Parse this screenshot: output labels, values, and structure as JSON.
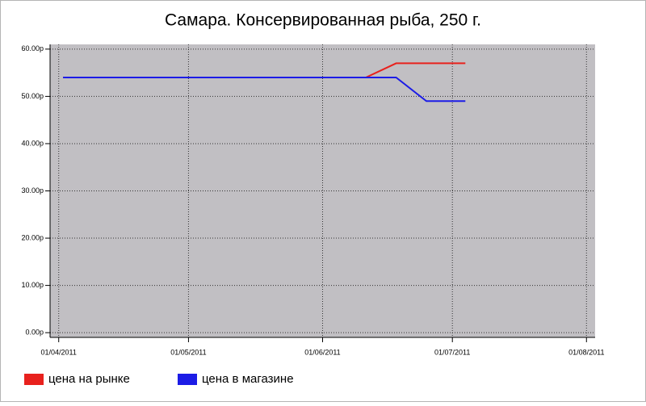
{
  "chart_data": {
    "type": "line",
    "title": "Самара. Консервированная рыба, 250 г.",
    "x": [
      "2011-04-02",
      "2011-06-11",
      "2011-06-18",
      "2011-06-25",
      "2011-07-04"
    ],
    "series": [
      {
        "name": "цена на рынке",
        "color": "#e8211d",
        "values": [
          54,
          54,
          57,
          57,
          57
        ]
      },
      {
        "name": "цена в магазине",
        "color": "#1c1ce6",
        "values": [
          54,
          54,
          54,
          49,
          49
        ]
      }
    ],
    "xlim": [
      "2011-03-30",
      "2011-08-03"
    ],
    "xticks": [
      {
        "value": "2011-04-01",
        "label": "01/04/2011"
      },
      {
        "value": "2011-05-01",
        "label": "01/05/2011"
      },
      {
        "value": "2011-06-01",
        "label": "01/06/2011"
      },
      {
        "value": "2011-07-01",
        "label": "01/07/2011"
      },
      {
        "value": "2011-08-01",
        "label": "01/08/2011"
      }
    ],
    "ylim": [
      -1,
      61
    ],
    "yticks": [
      {
        "value": 0,
        "label": "0.00р"
      },
      {
        "value": 10,
        "label": "10.00р"
      },
      {
        "value": 20,
        "label": "20.00р"
      },
      {
        "value": 30,
        "label": "30.00р"
      },
      {
        "value": 40,
        "label": "40.00р"
      },
      {
        "value": 50,
        "label": "50.00р"
      },
      {
        "value": 60,
        "label": "60.00р"
      }
    ],
    "grid": true,
    "legend": "bottom"
  }
}
